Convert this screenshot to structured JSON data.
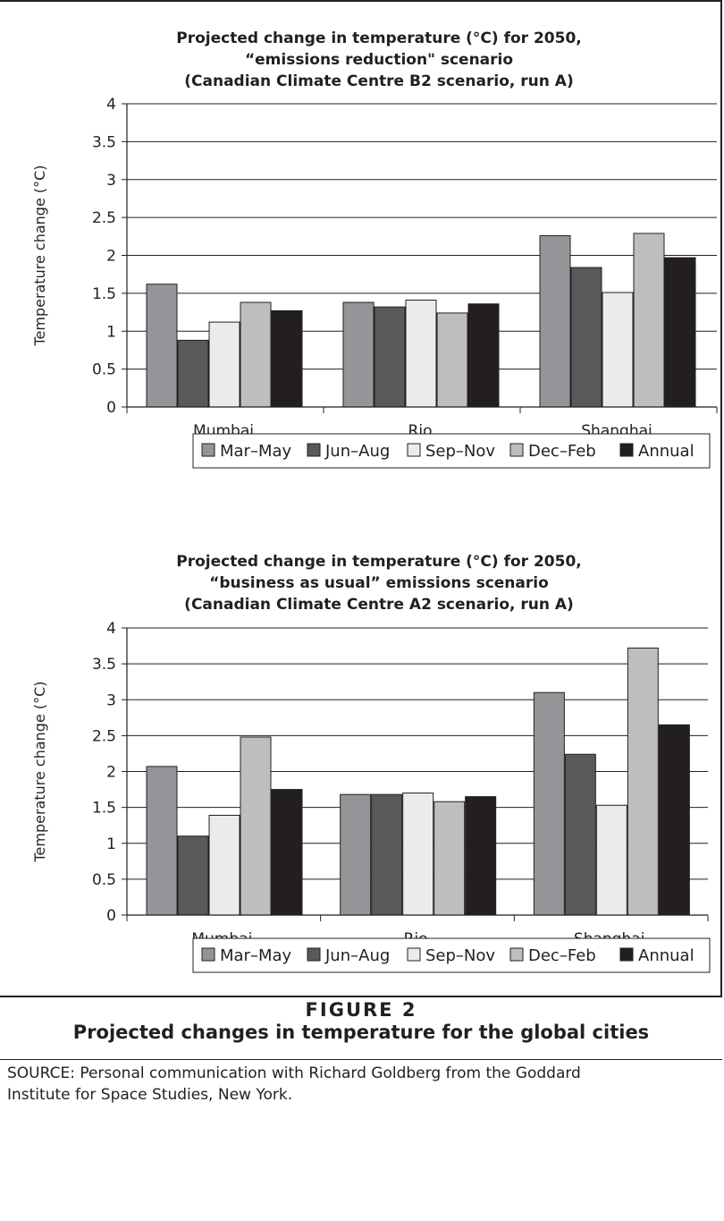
{
  "chart_data": [
    {
      "type": "bar",
      "title": "Projected change in temperature (°C) for 2050,",
      "subtitle": "“emissions reduction\" scenario",
      "subtitle2": "(Canadian Climate Centre B2 scenario, run A)",
      "ylabel": "Temperature change (°C)",
      "xlabel": "",
      "ylim": [
        0,
        4
      ],
      "yticks": [
        "0",
        "0.5",
        "1",
        "1.5",
        "2",
        "2.5",
        "3",
        "3.5",
        "4"
      ],
      "grid": true,
      "legend_position": "bottom",
      "categories": [
        "Mumbai",
        "Rio",
        "Shanghai"
      ],
      "series": [
        {
          "name": "Mar–May",
          "color": "#939598",
          "values": [
            1.62,
            1.38,
            2.26
          ]
        },
        {
          "name": "Jun–Aug",
          "color": "#58595b",
          "values": [
            0.88,
            1.32,
            1.84
          ]
        },
        {
          "name": "Sep–Nov",
          "color": "#ebebec",
          "values": [
            1.12,
            1.41,
            1.51
          ]
        },
        {
          "name": "Dec–Feb",
          "color": "#bcbec0",
          "values": [
            1.38,
            1.24,
            2.29
          ]
        },
        {
          "name": "Annual",
          "color": "#231f20",
          "values": [
            1.27,
            1.36,
            1.97
          ]
        }
      ]
    },
    {
      "type": "bar",
      "title": "Projected change in temperature (°C) for 2050,",
      "subtitle": "“business as usual” emissions scenario",
      "subtitle2": "(Canadian Climate Centre A2 scenario, run A)",
      "ylabel": "Temperature change (°C)",
      "xlabel": "",
      "ylim": [
        0,
        4
      ],
      "yticks": [
        "0",
        "0.5",
        "1",
        "1.5",
        "2",
        "2.5",
        "3",
        "3.5",
        "4"
      ],
      "grid": true,
      "legend_position": "bottom",
      "categories": [
        "Mumbai",
        "Rio",
        "Shanghai"
      ],
      "series": [
        {
          "name": "Mar–May",
          "color": "#939598",
          "values": [
            2.07,
            1.68,
            3.1
          ]
        },
        {
          "name": "Jun–Aug",
          "color": "#58595b",
          "values": [
            1.1,
            1.68,
            2.24
          ]
        },
        {
          "name": "Sep–Nov",
          "color": "#ebebec",
          "values": [
            1.39,
            1.7,
            1.53
          ]
        },
        {
          "name": "Dec–Feb",
          "color": "#bcbec0",
          "values": [
            2.48,
            1.58,
            3.72
          ]
        },
        {
          "name": "Annual",
          "color": "#231f20",
          "values": [
            1.75,
            1.65,
            2.65
          ]
        }
      ]
    }
  ],
  "figure": {
    "number": "FIGURE 2",
    "caption": "Projected changes in temperature for the global cities",
    "source_line1": "SOURCE: Personal communication with Richard Goldberg from the Goddard",
    "source_line2": "Institute for Space Studies, New York."
  }
}
